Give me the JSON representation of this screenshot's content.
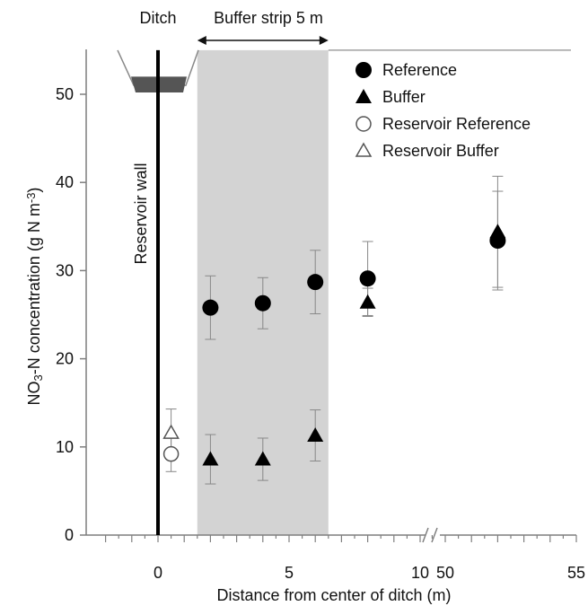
{
  "chart_data": {
    "type": "scatter",
    "xlabel": "Distance from center of ditch (m)",
    "ylabel": "NO3-N concentration (g N m-3)",
    "ylabel_parts": {
      "pre": "NO",
      "sub": "3",
      "mid": "-N concentration (g N m",
      "sup": "-3",
      "post": ")"
    },
    "ylim": [
      0,
      55
    ],
    "yticks": [
      0,
      10,
      20,
      30,
      40,
      50
    ],
    "x_segments": [
      {
        "range": [
          -2,
          10.3
        ],
        "ticks": [
          0,
          5,
          10
        ],
        "minor_step": 0.5
      },
      {
        "range": [
          49.5,
          55
        ],
        "ticks": [
          50,
          55
        ],
        "minor_step": 0.5
      }
    ],
    "x_break": true,
    "grid": false,
    "legend_position": "top-right",
    "series": [
      {
        "name": "Reference",
        "marker": "filled-circle",
        "points": [
          {
            "x": 2,
            "y": 25.8,
            "err": 3.6
          },
          {
            "x": 4,
            "y": 26.3,
            "err": 2.9
          },
          {
            "x": 6,
            "y": 28.7,
            "err": 3.6
          },
          {
            "x": 8,
            "y": 29.1,
            "err": 4.2
          },
          {
            "x": 52,
            "y": 33.4,
            "err": 5.6
          }
        ]
      },
      {
        "name": "Buffer",
        "marker": "filled-triangle",
        "points": [
          {
            "x": 2,
            "y": 8.6,
            "err": 2.8
          },
          {
            "x": 4,
            "y": 8.6,
            "err": 2.4
          },
          {
            "x": 6,
            "y": 11.3,
            "err": 2.9
          },
          {
            "x": 8,
            "y": 26.4,
            "err": 1.6
          },
          {
            "x": 52,
            "y": 34.4,
            "err": 6.3
          }
        ]
      },
      {
        "name": "Reservoir Reference",
        "marker": "open-circle",
        "points": [
          {
            "x": 0.5,
            "y": 9.2,
            "err": 2.0
          }
        ]
      },
      {
        "name": "Reservoir Buffer",
        "marker": "open-triangle",
        "points": [
          {
            "x": 0.5,
            "y": 11.6,
            "err": 2.7
          }
        ]
      }
    ],
    "shaded_region": {
      "x": [
        1.5,
        6.5
      ],
      "color": "#d3d3d3"
    },
    "annotations": {
      "ditch": "Ditch",
      "buffer_strip": "Buffer strip 5 m",
      "reservoir_wall": "Reservoir wall"
    },
    "colors": {
      "axis": "#7f7f7f",
      "marker": "#000000",
      "shade": "#d3d3d3",
      "ditch_fill": "#555555",
      "errorbar": "#888888"
    }
  }
}
